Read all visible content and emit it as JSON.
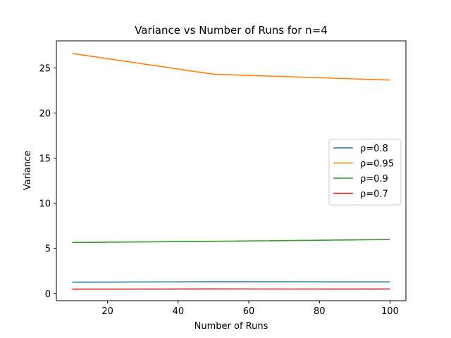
{
  "chart_data": {
    "type": "line",
    "title": "Variance vs Number of Runs for n=4",
    "xlabel": "Number of Runs",
    "ylabel": "Variance",
    "x": [
      10,
      50,
      100
    ],
    "xlim": [
      5.5,
      104.5
    ],
    "ylim": [
      -0.8,
      28.0
    ],
    "xticks": [
      20,
      40,
      60,
      80,
      100
    ],
    "yticks": [
      0,
      5,
      10,
      15,
      20,
      25
    ],
    "legend_position": "center-right",
    "grid": false,
    "series": [
      {
        "name": "ρ=0.8",
        "color": "#1f77b4",
        "values": [
          1.25,
          1.3,
          1.28
        ]
      },
      {
        "name": "ρ=0.95",
        "color": "#ff7f0e",
        "values": [
          26.6,
          24.3,
          23.65
        ]
      },
      {
        "name": "ρ=0.9",
        "color": "#2ca02c",
        "values": [
          5.65,
          5.78,
          5.98
        ]
      },
      {
        "name": "ρ=0.7",
        "color": "#d62728",
        "values": [
          0.48,
          0.5,
          0.49
        ]
      }
    ]
  }
}
